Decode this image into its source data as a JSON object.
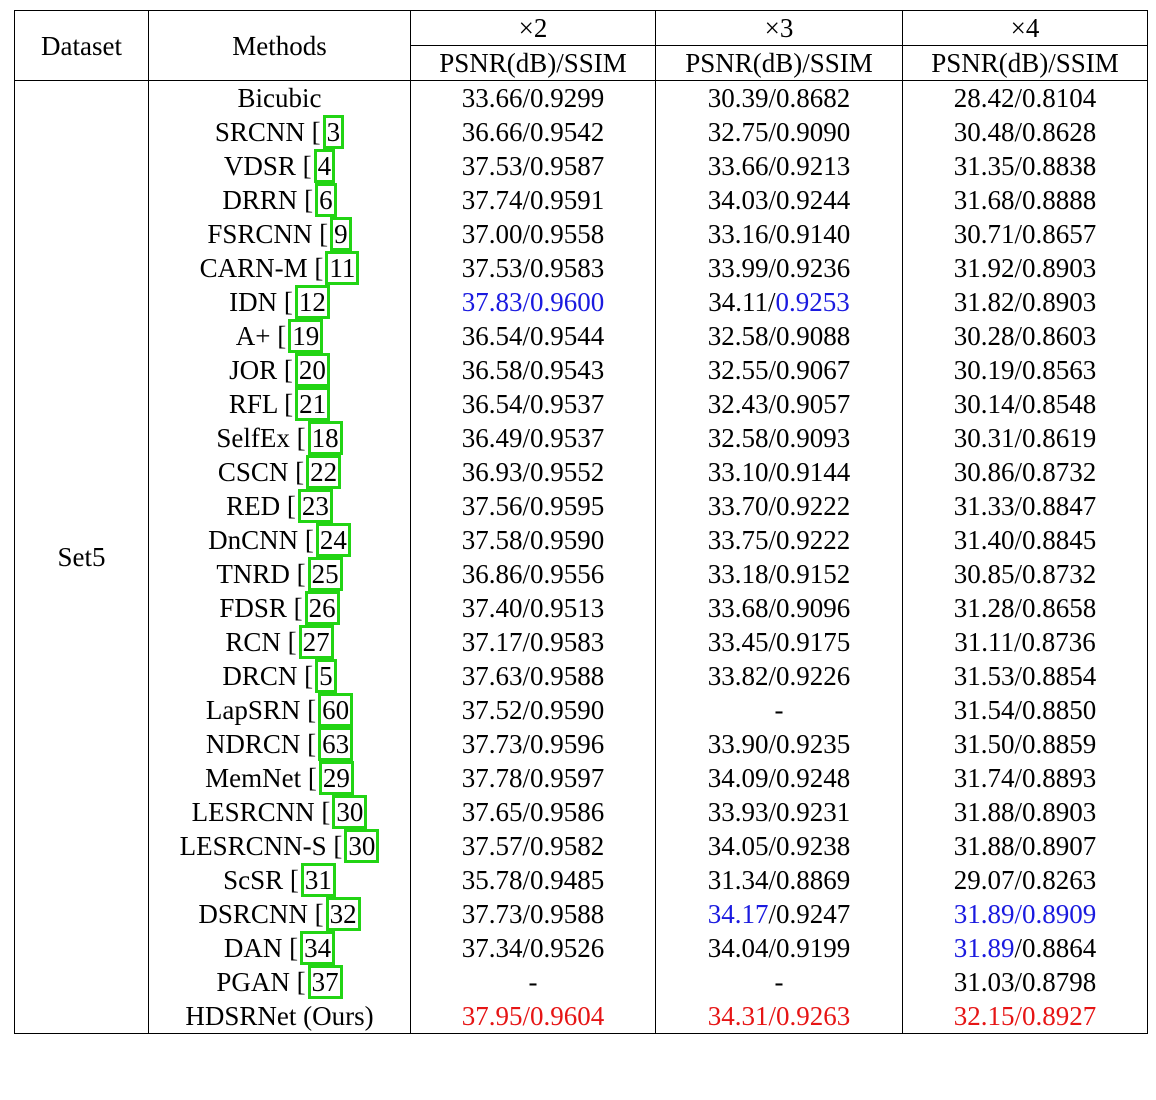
{
  "columns": {
    "dataset": "Dataset",
    "methods": "Methods",
    "scales": [
      "×2",
      "×3",
      "×4"
    ],
    "metric": "PSNR(dB)/SSIM"
  },
  "dataset_name": "Set5",
  "rows": [
    {
      "method": "Bicubic",
      "ref": "",
      "x2": "33.66/0.9299",
      "x3": "30.39/0.8682",
      "x4": "28.42/0.8104"
    },
    {
      "method": "SRCNN",
      "ref": "3",
      "x2": "36.66/0.9542",
      "x3": "32.75/0.9090",
      "x4": "30.48/0.8628"
    },
    {
      "method": "VDSR",
      "ref": "4",
      "x2": "37.53/0.9587",
      "x3": "33.66/0.9213",
      "x4": "31.35/0.8838"
    },
    {
      "method": "DRRN",
      "ref": "6",
      "x2": "37.74/0.9591",
      "x3": "34.03/0.9244",
      "x4": "31.68/0.8888"
    },
    {
      "method": "FSRCNN",
      "ref": "9",
      "x2": "37.00/0.9558",
      "x3": "33.16/0.9140",
      "x4": "30.71/0.8657"
    },
    {
      "method": "CARN-M",
      "ref": "11",
      "x2": "37.53/0.9583",
      "x3": "33.99/0.9236",
      "x4": "31.92/0.8903"
    },
    {
      "method": "IDN",
      "ref": "12",
      "x2": "37.83/0.9600",
      "x3": "34.11/0.9253",
      "x4": "31.82/0.8903"
    },
    {
      "method": "A+",
      "ref": "19",
      "x2": "36.54/0.9544",
      "x3": "32.58/0.9088",
      "x4": "30.28/0.8603"
    },
    {
      "method": "JOR",
      "ref": "20",
      "x2": "36.58/0.9543",
      "x3": "32.55/0.9067",
      "x4": "30.19/0.8563"
    },
    {
      "method": "RFL",
      "ref": "21",
      "x2": "36.54/0.9537",
      "x3": "32.43/0.9057",
      "x4": "30.14/0.8548"
    },
    {
      "method": "SelfEx",
      "ref": "18",
      "x2": "36.49/0.9537",
      "x3": "32.58/0.9093",
      "x4": "30.31/0.8619"
    },
    {
      "method": "CSCN",
      "ref": "22",
      "x2": "36.93/0.9552",
      "x3": "33.10/0.9144",
      "x4": "30.86/0.8732"
    },
    {
      "method": "RED",
      "ref": "23",
      "x2": "37.56/0.9595",
      "x3": "33.70/0.9222",
      "x4": "31.33/0.8847"
    },
    {
      "method": "DnCNN",
      "ref": "24",
      "x2": "37.58/0.9590",
      "x3": "33.75/0.9222",
      "x4": "31.40/0.8845"
    },
    {
      "method": "TNRD",
      "ref": "25",
      "x2": "36.86/0.9556",
      "x3": "33.18/0.9152",
      "x4": "30.85/0.8732"
    },
    {
      "method": "FDSR",
      "ref": "26",
      "x2": "37.40/0.9513",
      "x3": "33.68/0.9096",
      "x4": "31.28/0.8658"
    },
    {
      "method": "RCN",
      "ref": "27",
      "x2": "37.17/0.9583",
      "x3": "33.45/0.9175",
      "x4": "31.11/0.8736"
    },
    {
      "method": "DRCN",
      "ref": "5",
      "x2": "37.63/0.9588",
      "x3": "33.82/0.9226",
      "x4": "31.53/0.8854"
    },
    {
      "method": "LapSRN",
      "ref": "60",
      "x2": "37.52/0.9590",
      "x3": "-",
      "x4": "31.54/0.8850"
    },
    {
      "method": "NDRCN",
      "ref": "63",
      "x2": "37.73/0.9596",
      "x3": "33.90/0.9235",
      "x4": "31.50/0.8859"
    },
    {
      "method": "MemNet",
      "ref": "29",
      "x2": "37.78/0.9597",
      "x3": "34.09/0.9248",
      "x4": "31.74/0.8893"
    },
    {
      "method": "LESRCNN",
      "ref": "30",
      "x2": "37.65/0.9586",
      "x3": "33.93/0.9231",
      "x4": "31.88/0.8903"
    },
    {
      "method": "LESRCNN-S",
      "ref": "30",
      "x2": "37.57/0.9582",
      "x3": "34.05/0.9238",
      "x4": "31.88/0.8907"
    },
    {
      "method": "ScSR",
      "ref": "31",
      "x2": "35.78/0.9485",
      "x3": "31.34/0.8869",
      "x4": "29.07/0.8263"
    },
    {
      "method": "DSRCNN",
      "ref": "32",
      "x2": "37.73/0.9588",
      "x3": "34.17/0.9247",
      "x4": "31.89/0.8909"
    },
    {
      "method": "DAN",
      "ref": "34",
      "x2": "37.34/0.9526",
      "x3": "34.04/0.9199",
      "x4": "31.89/0.8864"
    },
    {
      "method": "PGAN",
      "ref": "37",
      "x2": "-",
      "x3": "-",
      "x4": "31.03/0.8798"
    },
    {
      "method": "HDSRNet (Ours)",
      "ref": "",
      "x2": "37.95/0.9604",
      "x3": "34.31/0.9263",
      "x4": "32.15/0.8927"
    }
  ],
  "highlights": {
    "second_best_color": "#1a1adf",
    "best_color": "#e61515",
    "ref_box_color": "#22d414",
    "cells": [
      {
        "row": 6,
        "col": "x2",
        "style": "blue"
      },
      {
        "row": 6,
        "col": "x3",
        "style": "blue-ssim"
      },
      {
        "row": 24,
        "col": "x3",
        "style": "blue-psnr"
      },
      {
        "row": 24,
        "col": "x4",
        "style": "blue"
      },
      {
        "row": 25,
        "col": "x4",
        "style": "blue-psnr"
      },
      {
        "row": 27,
        "col": "x2",
        "style": "red"
      },
      {
        "row": 27,
        "col": "x3",
        "style": "red"
      },
      {
        "row": 27,
        "col": "x4",
        "style": "red"
      }
    ]
  }
}
